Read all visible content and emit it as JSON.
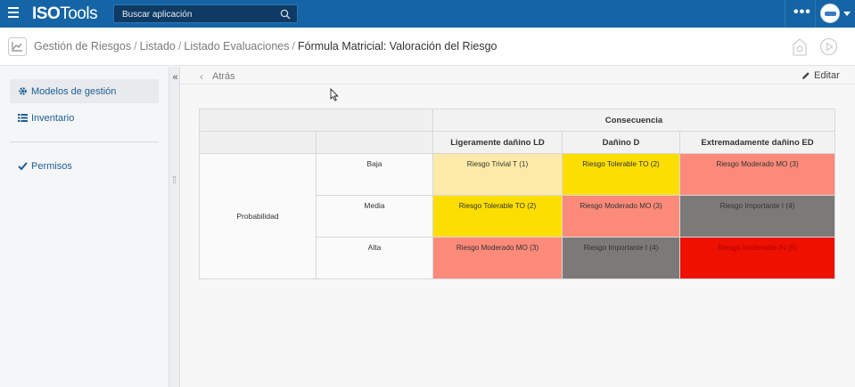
{
  "topbar": {
    "brand_bold": "ISO",
    "brand_rest": "Tools",
    "search_placeholder": "Buscar aplicación",
    "more": "•••",
    "colors": {
      "bar": "#1565a6",
      "search_bg": "#0e3a63"
    }
  },
  "breadcrumb": {
    "items": [
      "Gestión de Riesgos",
      "Listado",
      "Listado Evaluaciones"
    ],
    "separator": "/",
    "current": "Fórmula Matricial: Valoración del Riesgo"
  },
  "sidebar": {
    "items": [
      {
        "label": "Modelos de gestión",
        "icon": "gear-icon"
      },
      {
        "label": "Inventario",
        "icon": "list-icon"
      },
      {
        "label": "Permisos",
        "icon": "check-icon"
      }
    ],
    "collapse": "«"
  },
  "subbar": {
    "back_label": "Atrás",
    "edit_label": "Editar"
  },
  "matrix": {
    "consequence_header": "Consecuencia",
    "probability_header": "Probabilidad",
    "columns": [
      "Ligeramente dañino LD",
      "Dañino D",
      "Extremadamente dañino ED"
    ],
    "rows": [
      {
        "label": "Baja",
        "cells": [
          "Riesgo Trivial T (1)",
          "Riesgo Tolerable TO (2)",
          "Riesgo Moderado MO (3)"
        ]
      },
      {
        "label": "Media",
        "cells": [
          "Riesgo Tolerable TO (2)",
          "Riesgo Moderado MO (3)",
          "Riesgo Importante I (4)"
        ]
      },
      {
        "label": "Alta",
        "cells": [
          "Riesgo Moderado MO (3)",
          "Riesgo Importante I (4)",
          "Riesgo Intolerable IN (5)"
        ]
      }
    ],
    "level_colors": {
      "trivial": "#fdeaa8",
      "tolerable": "#fcdf00",
      "moderado": "#fb8a7a",
      "importante": "#7c7a78",
      "intolerable": "#ee1100"
    }
  }
}
